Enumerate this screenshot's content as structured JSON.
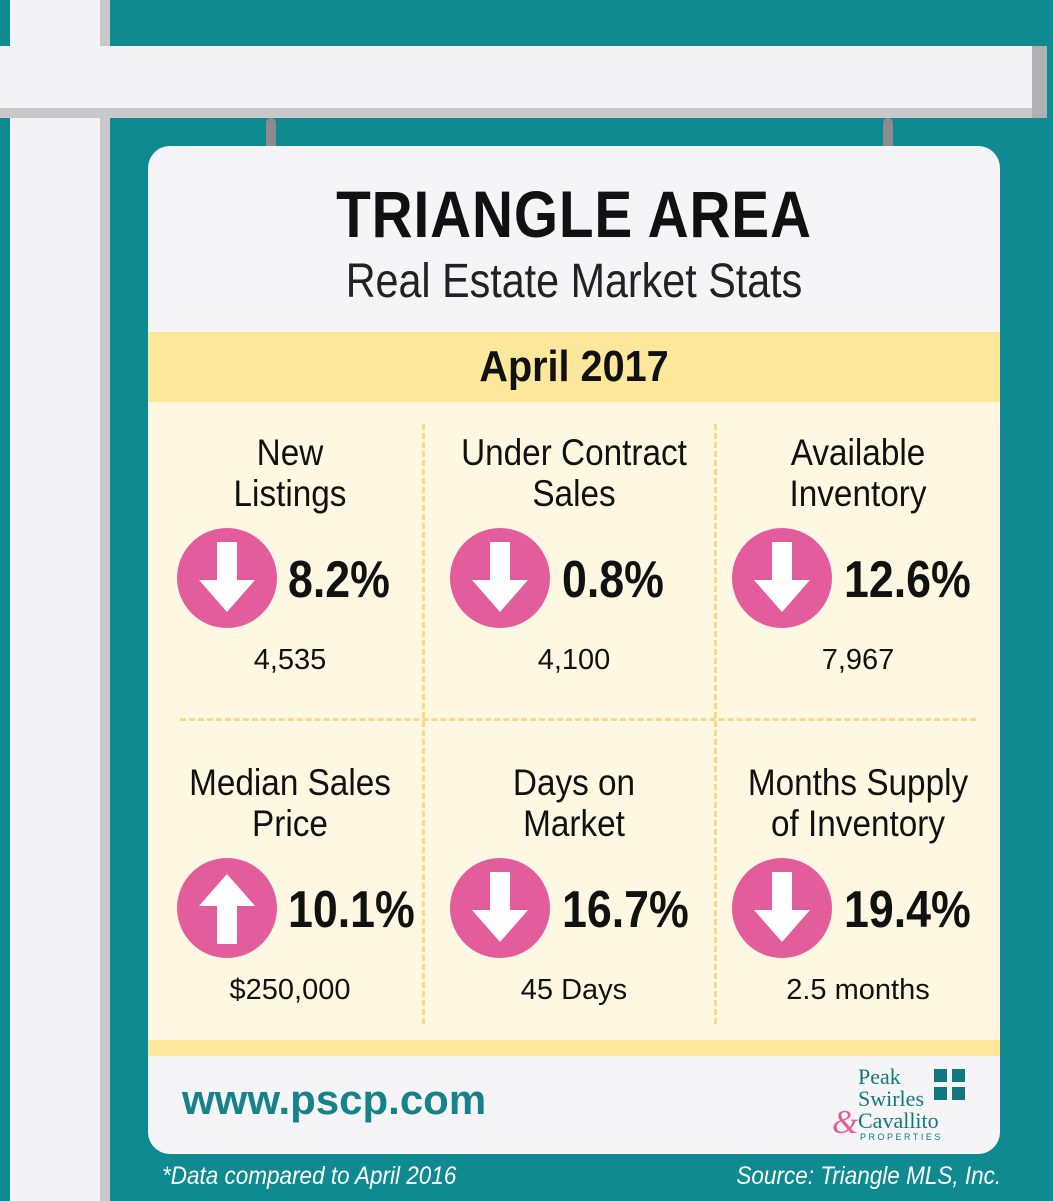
{
  "header": {
    "title": "TRIANGLE AREA",
    "subtitle": "Real Estate Market Stats",
    "month": "April 2017"
  },
  "stats": [
    {
      "label_line1": "New",
      "label_line2": "Listings",
      "direction": "down",
      "change": "8.2%",
      "value": "4,535"
    },
    {
      "label_line1": "Under Contract",
      "label_line2": "Sales",
      "direction": "down",
      "change": "0.8%",
      "value": "4,100"
    },
    {
      "label_line1": "Available",
      "label_line2": "Inventory",
      "direction": "down",
      "change": "12.6%",
      "value": "7,967"
    },
    {
      "label_line1": "Median Sales",
      "label_line2": "Price",
      "direction": "up",
      "change": "10.1%",
      "value": "$250,000"
    },
    {
      "label_line1": "Days on",
      "label_line2": "Market",
      "direction": "down",
      "change": "16.7%",
      "value": "45 Days"
    },
    {
      "label_line1": "Months Supply",
      "label_line2": "of Inventory",
      "direction": "down",
      "change": "19.4%",
      "value": "2.5 months"
    }
  ],
  "footer": {
    "url": "www.pscp.com",
    "logo_line1": "Peak",
    "logo_line2": "Swirles",
    "logo_line3": "Cavallito",
    "logo_amp": "&",
    "logo_sub": "PROPERTIES"
  },
  "notes": {
    "left": "*Data compared to April 2016",
    "right": "Source: Triangle MLS, Inc."
  },
  "colors": {
    "background": "#0f8a91",
    "accent_pink": "#e35d9c",
    "banner_yellow": "#fde79a",
    "teal_text": "#16838a"
  }
}
